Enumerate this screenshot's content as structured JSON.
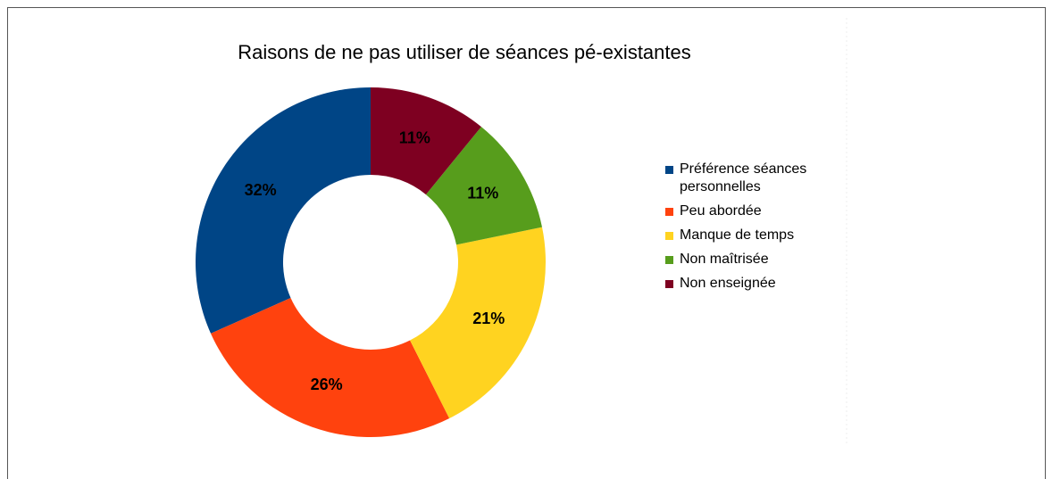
{
  "chart_data": {
    "type": "pie",
    "title": "Raisons de ne pas utiliser de séances pé-existantes",
    "categories": [
      "Préférence séances personnelles",
      "Peu abordée",
      "Manque de temps",
      "Non maîtrisée",
      "Non enseignée"
    ],
    "values": [
      32,
      26,
      21,
      11,
      11
    ],
    "value_labels": [
      "32%",
      "26%",
      "21%",
      "11%",
      "11%"
    ],
    "colors": [
      "#004586",
      "#ff420e",
      "#ffd320",
      "#579d1c",
      "#7e0021"
    ],
    "legend": "right"
  }
}
